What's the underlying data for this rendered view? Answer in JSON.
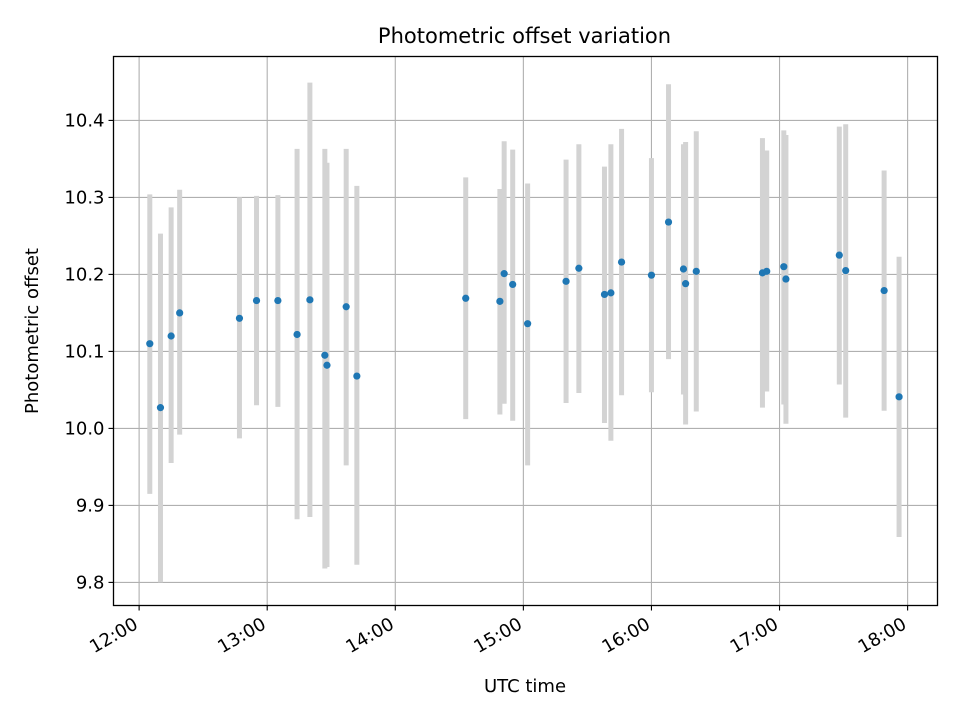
{
  "chart_data": {
    "type": "scatter",
    "title": "Photometric offset variation",
    "xlabel": "UTC time",
    "ylabel": "Photometric offset",
    "xlim": [
      "11:48",
      "18:14"
    ],
    "ylim": [
      9.77,
      10.483
    ],
    "grid": true,
    "x_ticks": [
      "12:00",
      "13:00",
      "14:00",
      "15:00",
      "16:00",
      "17:00",
      "18:00"
    ],
    "y_ticks": [
      "9.8",
      "9.9",
      "10.0",
      "10.1",
      "10.2",
      "10.3",
      "10.4"
    ],
    "colors": {
      "point": "#1f77b4",
      "errorbar": "#d3d3d3",
      "grid": "#b0b0b0"
    },
    "points": [
      {
        "x": "12:05",
        "y": 10.11,
        "ylo": 9.915,
        "yhi": 10.304
      },
      {
        "x": "12:10",
        "y": 10.027,
        "ylo": 9.8,
        "yhi": 10.253
      },
      {
        "x": "12:15",
        "y": 10.12,
        "ylo": 9.955,
        "yhi": 10.287
      },
      {
        "x": "12:19",
        "y": 10.15,
        "ylo": 9.992,
        "yhi": 10.31
      },
      {
        "x": "12:47",
        "y": 10.143,
        "ylo": 9.987,
        "yhi": 10.3
      },
      {
        "x": "12:55",
        "y": 10.166,
        "ylo": 10.03,
        "yhi": 10.302
      },
      {
        "x": "13:05",
        "y": 10.166,
        "ylo": 10.028,
        "yhi": 10.303
      },
      {
        "x": "13:14",
        "y": 10.122,
        "ylo": 9.882,
        "yhi": 10.363
      },
      {
        "x": "13:20",
        "y": 10.167,
        "ylo": 9.885,
        "yhi": 10.449
      },
      {
        "x": "13:27",
        "y": 10.095,
        "ylo": 9.818,
        "yhi": 10.363
      },
      {
        "x": "13:28",
        "y": 10.082,
        "ylo": 9.82,
        "yhi": 10.345
      },
      {
        "x": "13:37",
        "y": 10.158,
        "ylo": 9.952,
        "yhi": 10.363
      },
      {
        "x": "13:42",
        "y": 10.068,
        "ylo": 9.823,
        "yhi": 10.315
      },
      {
        "x": "14:33",
        "y": 10.169,
        "ylo": 10.012,
        "yhi": 10.326
      },
      {
        "x": "14:49",
        "y": 10.165,
        "ylo": 10.018,
        "yhi": 10.311
      },
      {
        "x": "14:51",
        "y": 10.201,
        "ylo": 10.032,
        "yhi": 10.373
      },
      {
        "x": "14:55",
        "y": 10.187,
        "ylo": 10.01,
        "yhi": 10.362
      },
      {
        "x": "15:02",
        "y": 10.136,
        "ylo": 9.952,
        "yhi": 10.318
      },
      {
        "x": "15:20",
        "y": 10.191,
        "ylo": 10.033,
        "yhi": 10.349
      },
      {
        "x": "15:26",
        "y": 10.208,
        "ylo": 10.046,
        "yhi": 10.369
      },
      {
        "x": "15:38",
        "y": 10.174,
        "ylo": 10.007,
        "yhi": 10.34
      },
      {
        "x": "15:41",
        "y": 10.176,
        "ylo": 9.984,
        "yhi": 10.369
      },
      {
        "x": "15:46",
        "y": 10.216,
        "ylo": 10.043,
        "yhi": 10.389
      },
      {
        "x": "16:00",
        "y": 10.199,
        "ylo": 10.047,
        "yhi": 10.351
      },
      {
        "x": "16:08",
        "y": 10.268,
        "ylo": 10.09,
        "yhi": 10.447
      },
      {
        "x": "16:15",
        "y": 10.207,
        "ylo": 10.044,
        "yhi": 10.369
      },
      {
        "x": "16:16",
        "y": 10.188,
        "ylo": 10.005,
        "yhi": 10.372
      },
      {
        "x": "16:21",
        "y": 10.204,
        "ylo": 10.022,
        "yhi": 10.386
      },
      {
        "x": "16:52",
        "y": 10.202,
        "ylo": 10.027,
        "yhi": 10.377
      },
      {
        "x": "16:54",
        "y": 10.204,
        "ylo": 10.048,
        "yhi": 10.361
      },
      {
        "x": "17:02",
        "y": 10.21,
        "ylo": 10.031,
        "yhi": 10.387
      },
      {
        "x": "17:03",
        "y": 10.194,
        "ylo": 10.006,
        "yhi": 10.381
      },
      {
        "x": "17:28",
        "y": 10.225,
        "ylo": 10.057,
        "yhi": 10.392
      },
      {
        "x": "17:31",
        "y": 10.205,
        "ylo": 10.014,
        "yhi": 10.395
      },
      {
        "x": "17:49",
        "y": 10.179,
        "ylo": 10.023,
        "yhi": 10.335
      },
      {
        "x": "17:56",
        "y": 10.041,
        "ylo": 9.859,
        "yhi": 10.223
      }
    ]
  }
}
